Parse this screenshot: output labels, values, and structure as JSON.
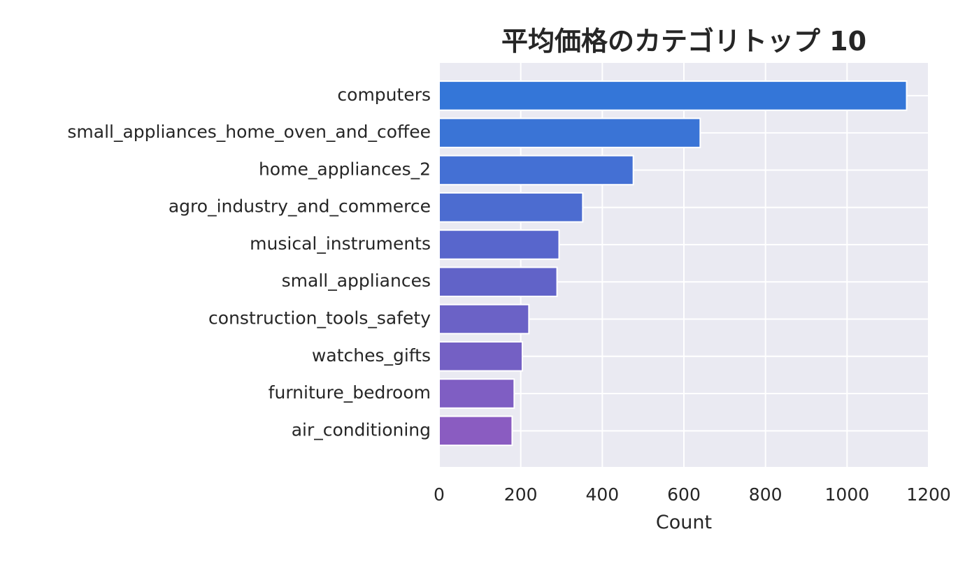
{
  "chart_data": {
    "type": "bar",
    "orientation": "horizontal",
    "title": "平均価格のカテゴリトップ 10",
    "xlabel": "Count",
    "ylabel": "",
    "xlim": [
      0,
      1200
    ],
    "xticks": [
      0,
      200,
      400,
      600,
      800,
      1000,
      1200
    ],
    "grid": true,
    "categories": [
      "computers",
      "small_appliances_home_oven_and_coffee",
      "home_appliances_2",
      "agro_industry_and_commerce",
      "musical_instruments",
      "small_appliances",
      "construction_tools_safety",
      "watches_gifts",
      "furniture_bedroom",
      "air_conditioning"
    ],
    "values": [
      1146,
      640,
      476,
      352,
      294,
      289,
      220,
      204,
      184,
      179
    ],
    "colors": [
      "#3476d8",
      "#3a74d6",
      "#4470d4",
      "#4c6cd0",
      "#5866cc",
      "#6163c8",
      "#6b62c6",
      "#7460c4",
      "#7f5ec3",
      "#8a5cc1"
    ],
    "plot_background": "#eaeaf2",
    "grid_color": "#ffffff"
  }
}
